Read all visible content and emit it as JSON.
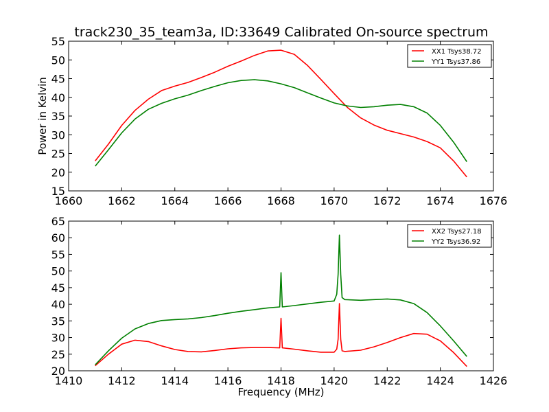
{
  "chart_data": [
    {
      "type": "line",
      "title": "track230_35_team3a, ID:33649 Calibrated On-source spectrum",
      "xlabel": "",
      "ylabel": "Power in Kelvin",
      "xlim": [
        1660,
        1676
      ],
      "ylim": [
        15,
        55
      ],
      "xticks": [
        1660,
        1662,
        1664,
        1666,
        1668,
        1670,
        1672,
        1674,
        1676
      ],
      "yticks": [
        15,
        20,
        25,
        30,
        35,
        40,
        45,
        50,
        55
      ],
      "grid": false,
      "legend_position": "top-right",
      "series": [
        {
          "name": "XX1 Tsys38.72",
          "color": "#ff0000",
          "x": [
            1661.0,
            1661.5,
            1662.0,
            1662.5,
            1663.0,
            1663.5,
            1664.0,
            1664.5,
            1665.0,
            1665.5,
            1666.0,
            1666.5,
            1667.0,
            1667.5,
            1668.0,
            1668.5,
            1669.0,
            1669.5,
            1670.0,
            1670.5,
            1671.0,
            1671.5,
            1672.0,
            1672.5,
            1673.0,
            1673.5,
            1674.0,
            1674.5,
            1675.0
          ],
          "y": [
            23.0,
            27.5,
            32.5,
            36.5,
            39.5,
            41.8,
            43.0,
            44.0,
            45.3,
            46.7,
            48.3,
            49.7,
            51.2,
            52.4,
            52.6,
            51.5,
            48.5,
            44.8,
            41.0,
            37.3,
            34.5,
            32.6,
            31.2,
            30.3,
            29.4,
            28.2,
            26.5,
            23.0,
            18.7
          ]
        },
        {
          "name": "YY1 Tsys37.86",
          "color": "#008000",
          "x": [
            1661.0,
            1661.5,
            1662.0,
            1662.5,
            1663.0,
            1663.5,
            1664.0,
            1664.5,
            1665.0,
            1665.5,
            1666.0,
            1666.5,
            1667.0,
            1667.5,
            1668.0,
            1668.5,
            1669.0,
            1669.5,
            1670.0,
            1670.5,
            1671.0,
            1671.5,
            1672.0,
            1672.5,
            1673.0,
            1673.5,
            1674.0,
            1674.5,
            1675.0
          ],
          "y": [
            21.6,
            26.0,
            30.5,
            34.2,
            36.8,
            38.4,
            39.6,
            40.6,
            41.8,
            42.9,
            43.9,
            44.5,
            44.7,
            44.4,
            43.6,
            42.6,
            41.2,
            39.8,
            38.5,
            37.7,
            37.3,
            37.5,
            37.9,
            38.1,
            37.5,
            35.8,
            32.5,
            28.0,
            22.8
          ]
        }
      ]
    },
    {
      "type": "line",
      "title": "",
      "xlabel": "Frequency (MHz)",
      "ylabel": "",
      "xlim": [
        1410,
        1426
      ],
      "ylim": [
        20,
        65
      ],
      "xticks": [
        1410,
        1412,
        1414,
        1416,
        1418,
        1420,
        1422,
        1424,
        1426
      ],
      "yticks": [
        20,
        25,
        30,
        35,
        40,
        45,
        50,
        55,
        60,
        65
      ],
      "grid": false,
      "legend_position": "top-right",
      "series": [
        {
          "name": "XX2 Tsys27.18",
          "color": "#ff0000",
          "x": [
            1411.0,
            1411.5,
            1412.0,
            1412.5,
            1413.0,
            1413.5,
            1414.0,
            1414.5,
            1415.0,
            1415.5,
            1416.0,
            1416.5,
            1417.0,
            1417.5,
            1417.95,
            1418.0,
            1418.05,
            1418.5,
            1419.0,
            1419.5,
            1420.0,
            1420.1,
            1420.15,
            1420.2,
            1420.25,
            1420.3,
            1420.4,
            1421.0,
            1421.5,
            1422.0,
            1422.5,
            1423.0,
            1423.5,
            1424.0,
            1424.5,
            1425.0
          ],
          "y": [
            21.5,
            25.0,
            28.0,
            29.2,
            28.8,
            27.5,
            26.4,
            25.8,
            25.7,
            26.1,
            26.6,
            26.9,
            27.0,
            27.0,
            26.9,
            35.8,
            26.9,
            26.5,
            26.0,
            25.6,
            25.6,
            26.5,
            29.5,
            40.2,
            29.5,
            26.0,
            25.8,
            26.2,
            27.2,
            28.5,
            30.0,
            31.2,
            31.0,
            29.0,
            25.5,
            21.3
          ]
        },
        {
          "name": "YY2 Tsys36.92",
          "color": "#008000",
          "x": [
            1411.0,
            1411.5,
            1412.0,
            1412.5,
            1413.0,
            1413.5,
            1414.0,
            1414.5,
            1415.0,
            1415.5,
            1416.0,
            1416.5,
            1417.0,
            1417.5,
            1417.95,
            1418.0,
            1418.05,
            1418.5,
            1419.0,
            1419.5,
            1420.0,
            1420.1,
            1420.15,
            1420.2,
            1420.25,
            1420.3,
            1420.4,
            1421.0,
            1421.5,
            1422.0,
            1422.5,
            1423.0,
            1423.5,
            1424.0,
            1424.5,
            1425.0
          ],
          "y": [
            21.8,
            26.0,
            29.8,
            32.6,
            34.2,
            35.1,
            35.4,
            35.6,
            36.0,
            36.6,
            37.3,
            37.9,
            38.4,
            38.9,
            39.2,
            49.5,
            39.2,
            39.6,
            40.1,
            40.6,
            41.0,
            43.0,
            49.0,
            60.8,
            49.0,
            42.0,
            41.4,
            41.2,
            41.4,
            41.6,
            41.3,
            40.2,
            37.5,
            33.5,
            29.0,
            24.3
          ]
        }
      ]
    }
  ]
}
